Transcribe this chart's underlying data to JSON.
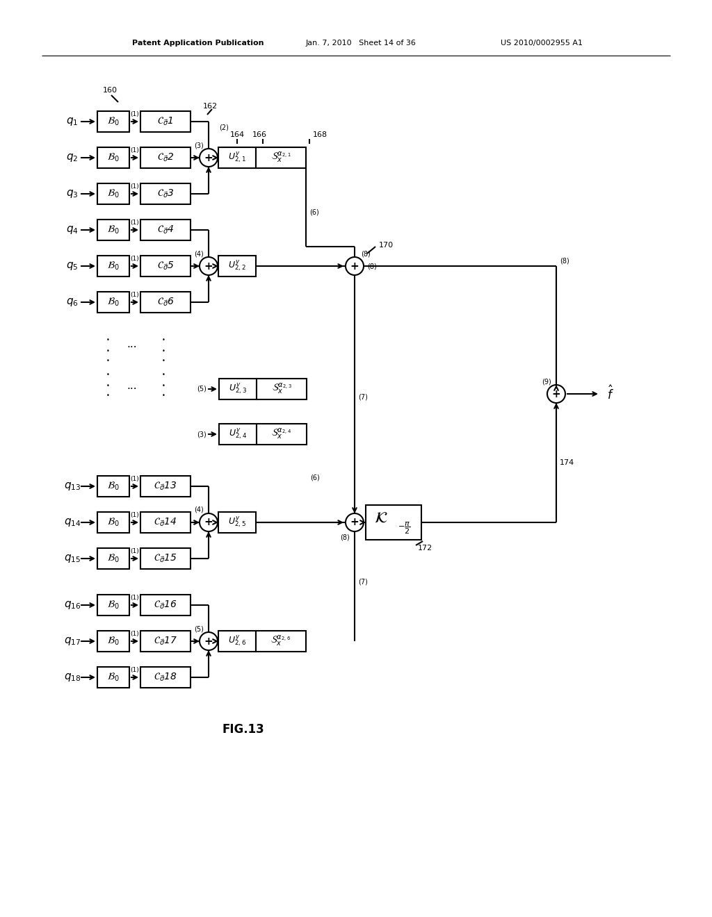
{
  "header_left": "Patent Application Publication",
  "header_mid": "Jan. 7, 2010   Sheet 14 of 36",
  "header_right": "US 2010/0002955 A1",
  "fig_label": "FIG.13",
  "bg_color": "#ffffff"
}
